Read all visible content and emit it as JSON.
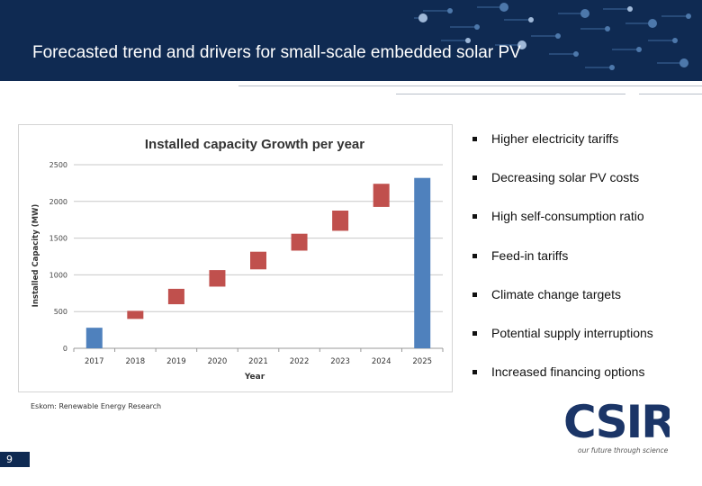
{
  "header": {
    "title": "Forecasted trend and drivers for small-scale embedded solar PV"
  },
  "colors": {
    "header": "#0f2a52",
    "total_bar": "#4f81bd",
    "increment_bar": "#c0504d"
  },
  "chart_data": {
    "type": "bar",
    "subtype": "waterfall",
    "title": "Installed capacity Growth per year",
    "xlabel": "Year",
    "ylabel": "Installed Capacity (MW)",
    "ylim": [
      0,
      2500
    ],
    "yticks": [
      0,
      500,
      1000,
      1500,
      2000,
      2500
    ],
    "grid": true,
    "categories": [
      "2017",
      "2018",
      "2019",
      "2020",
      "2021",
      "2022",
      "2023",
      "2024",
      "2025"
    ],
    "bars": [
      {
        "category": "2017",
        "kind": "total",
        "low": 0,
        "high": 280
      },
      {
        "category": "2018",
        "kind": "increment",
        "low": 400,
        "high": 510
      },
      {
        "category": "2019",
        "kind": "increment",
        "low": 600,
        "high": 810
      },
      {
        "category": "2020",
        "kind": "increment",
        "low": 840,
        "high": 1065
      },
      {
        "category": "2021",
        "kind": "increment",
        "low": 1075,
        "high": 1315
      },
      {
        "category": "2022",
        "kind": "increment",
        "low": 1330,
        "high": 1560
      },
      {
        "category": "2023",
        "kind": "increment",
        "low": 1600,
        "high": 1875
      },
      {
        "category": "2024",
        "kind": "increment",
        "low": 1925,
        "high": 2240
      },
      {
        "category": "2025",
        "kind": "total",
        "low": 0,
        "high": 2320
      }
    ]
  },
  "source": "Eskom: Renewable Energy Research",
  "drivers": [
    "Higher electricity tariffs",
    "Decreasing solar PV costs",
    "High self-consumption ratio",
    "Feed-in tariffs",
    "Climate change targets",
    "Potential supply interruptions",
    "Increased financing options"
  ],
  "logo": {
    "text": "CSIR",
    "tagline": "our future through science"
  },
  "page_number": "9"
}
